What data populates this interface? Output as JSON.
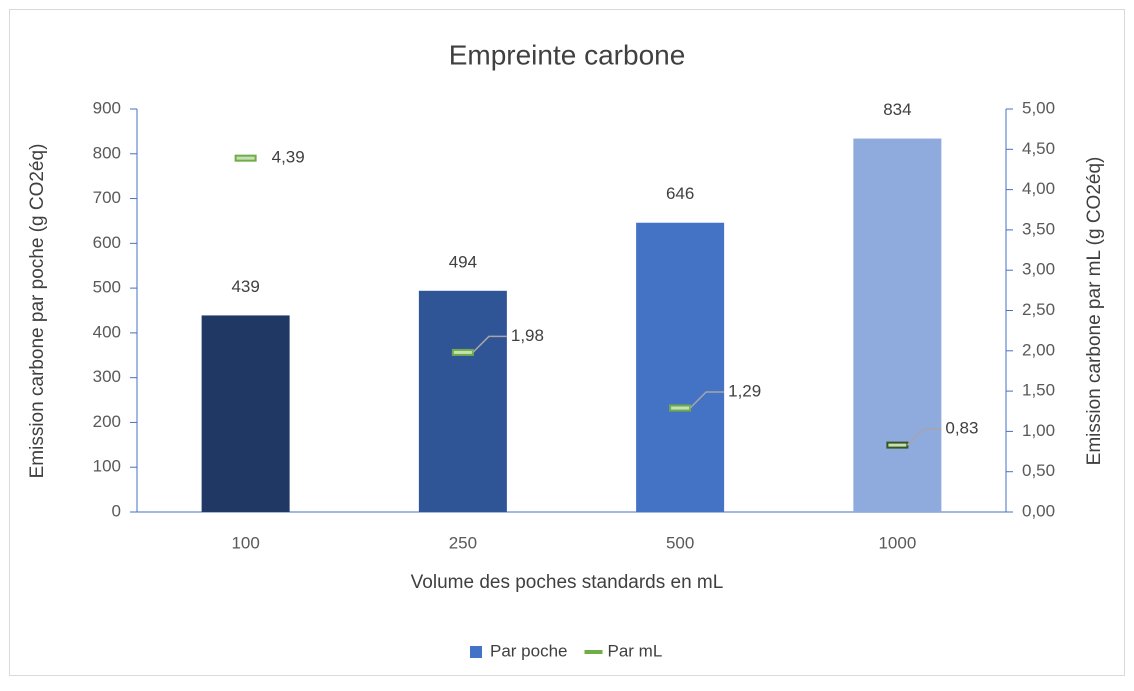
{
  "chart_data": {
    "type": "bar",
    "title": "Empreinte carbone",
    "x_label": "Volume des poches standards en mL",
    "y_label": "Emission carbone par poche (g CO2éq)",
    "y2_label": "Emission carbone par mL (g CO2éq)",
    "categories": [
      "100",
      "250",
      "500",
      "1000"
    ],
    "series": [
      {
        "name": "Par poche",
        "type": "bar",
        "color": "#4472c4",
        "colors": [
          "#203864",
          "#2f5597",
          "#4472c4",
          "#8faadc"
        ],
        "values": [
          439,
          494,
          646,
          834
        ]
      },
      {
        "name": "Par mL",
        "type": "marker",
        "axis": "y2",
        "color": "#70ad47",
        "colors": [
          "#70ad47",
          "#70ad47",
          "#70ad47",
          "#375623"
        ],
        "values": [
          4.39,
          1.98,
          1.29,
          0.83
        ],
        "value_labels": [
          "4,39",
          "1,98",
          "1,29",
          "0,83"
        ]
      }
    ],
    "ylim": [
      0,
      900
    ],
    "yticks": [
      0,
      100,
      200,
      300,
      400,
      500,
      600,
      700,
      800,
      900
    ],
    "y2lim": [
      0,
      5
    ],
    "y2ticks": [
      {
        "value": 0,
        "label": "0,00"
      },
      {
        "value": 0.5,
        "label": "0,50"
      },
      {
        "value": 1,
        "label": "1,00"
      },
      {
        "value": 1.5,
        "label": "1,50"
      },
      {
        "value": 2,
        "label": "2,00"
      },
      {
        "value": 2.5,
        "label": "2,50"
      },
      {
        "value": 3,
        "label": "3,00"
      },
      {
        "value": 3.5,
        "label": "3,50"
      },
      {
        "value": 4,
        "label": "4,00"
      },
      {
        "value": 4.5,
        "label": "4,50"
      },
      {
        "value": 5,
        "label": "5,00"
      }
    ],
    "grid": false,
    "legend": "bottom"
  }
}
